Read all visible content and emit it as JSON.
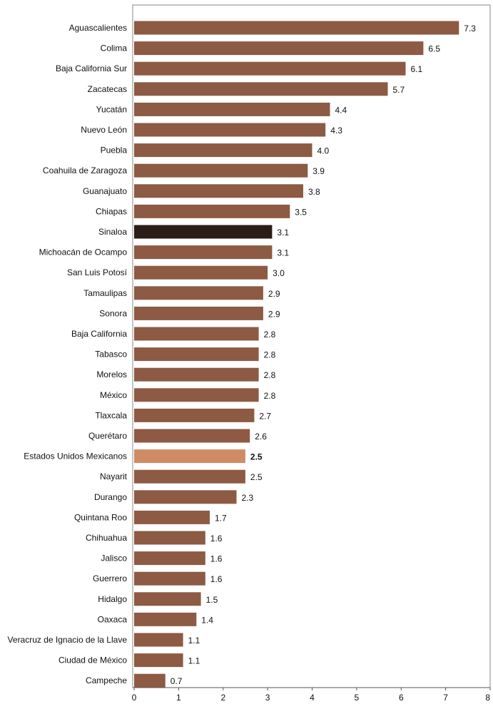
{
  "chart_data": {
    "type": "bar",
    "orientation": "horizontal",
    "categories": [
      "Aguascalientes",
      "Colima",
      "Baja California Sur",
      "Zacatecas",
      "Yucatán",
      "Nuevo León",
      "Puebla",
      "Coahuila de Zaragoza",
      "Guanajuato",
      "Chiapas",
      "Sinaloa",
      "Michoacán de Ocampo",
      "San Luis Potosí",
      "Tamaulipas",
      "Sonora",
      "Baja California",
      "Tabasco",
      "Morelos",
      "México",
      "Tlaxcala",
      "Querétaro",
      "Estados Unidos Mexicanos",
      "Nayarit",
      "Durango",
      "Quintana Roo",
      "Chihuahua",
      "Jalisco",
      "Guerrero",
      "Hidalgo",
      "Oaxaca",
      "Veracruz de Ignacio de la Llave",
      "Ciudad de México",
      "Campeche"
    ],
    "values": [
      7.3,
      6.5,
      6.1,
      5.7,
      4.4,
      4.3,
      4.0,
      3.9,
      3.8,
      3.5,
      3.1,
      3.1,
      3.0,
      2.9,
      2.9,
      2.8,
      2.8,
      2.8,
      2.8,
      2.7,
      2.6,
      2.5,
      2.5,
      2.3,
      1.7,
      1.6,
      1.6,
      1.6,
      1.5,
      1.4,
      1.1,
      1.1,
      0.7
    ],
    "value_labels": [
      "7.3",
      "6.5",
      "6.1",
      "5.7",
      "4.4",
      "4.3",
      "4.0",
      "3.9",
      "3.8",
      "3.5",
      "3.1",
      "3.1",
      "3.0",
      "2.9",
      "2.9",
      "2.8",
      "2.8",
      "2.8",
      "2.8",
      "2.7",
      "2.6",
      "2.5",
      "2.5",
      "2.3",
      "1.7",
      "1.6",
      "1.6",
      "1.6",
      "1.5",
      "1.4",
      "1.1",
      "1.1",
      "0.7"
    ],
    "highlight": {
      "Sinaloa": "#2b1d17",
      "Estados Unidos Mexicanos": "#cf8b63"
    },
    "bold_value_category": "Estados Unidos Mexicanos",
    "default_color": "#8d5a43",
    "xlim": [
      0,
      8
    ],
    "xticks": [
      "0",
      "1",
      "2",
      "3",
      "4",
      "5",
      "6",
      "7",
      "8"
    ],
    "grid": false,
    "legend": "none",
    "title": "",
    "xlabel": "",
    "ylabel": ""
  }
}
